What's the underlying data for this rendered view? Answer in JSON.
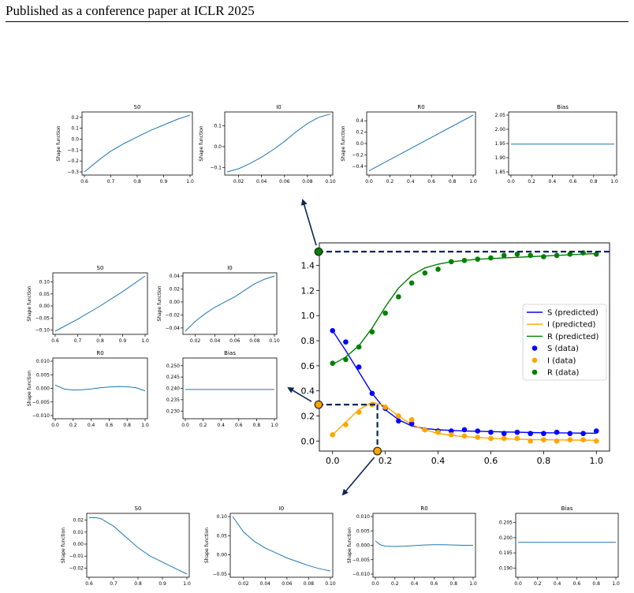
{
  "header": {
    "text": "Published as a conference paper at ICLR 2025"
  },
  "main_chart": {
    "type": "line",
    "x_ticks": [
      "0.0",
      "0.2",
      "0.4",
      "0.6",
      "0.8",
      "1.0"
    ],
    "y_ticks": [
      "0.0",
      "0.2",
      "0.4",
      "0.6",
      "0.8",
      "1.0",
      "1.2",
      "1.4"
    ],
    "xlim": [
      -0.05,
      1.05
    ],
    "ylim": [
      -0.08,
      1.58
    ],
    "legend": [
      {
        "label": "S (predicted)",
        "color": "#0000ff",
        "kind": "line"
      },
      {
        "label": "I (predicted)",
        "color": "#ffa500",
        "kind": "line"
      },
      {
        "label": "R (predicted)",
        "color": "#008000",
        "kind": "line"
      },
      {
        "label": "S (data)",
        "color": "#0000ff",
        "kind": "dot"
      },
      {
        "label": "I (data)",
        "color": "#ffa500",
        "kind": "dot"
      },
      {
        "label": "R (data)",
        "color": "#008000",
        "kind": "dot"
      }
    ],
    "markers": [
      {
        "x": -0.055,
        "y": 1.51,
        "color": "#008000"
      },
      {
        "x": -0.055,
        "y": 0.29,
        "color": "#ffa500"
      },
      {
        "x": 0.17,
        "y": -0.08,
        "color": "#ffa500"
      }
    ]
  },
  "chart_data": [
    {
      "type": "line",
      "x": [
        0.0,
        0.05,
        0.1,
        0.15,
        0.2,
        0.25,
        0.3,
        0.35,
        0.4,
        0.45,
        0.5,
        0.55,
        0.6,
        0.65,
        0.7,
        0.75,
        0.8,
        0.85,
        0.9,
        0.95,
        1.0
      ],
      "series": [
        {
          "name": "S (predicted)",
          "values": [
            0.88,
            0.72,
            0.55,
            0.38,
            0.25,
            0.17,
            0.12,
            0.1,
            0.09,
            0.085,
            0.08,
            0.078,
            0.075,
            0.072,
            0.07,
            0.068,
            0.066,
            0.065,
            0.064,
            0.063,
            0.062
          ]
        },
        {
          "name": "I (predicted)",
          "values": [
            0.05,
            0.15,
            0.25,
            0.31,
            0.28,
            0.2,
            0.13,
            0.09,
            0.06,
            0.045,
            0.035,
            0.028,
            0.022,
            0.018,
            0.015,
            0.012,
            0.01,
            0.009,
            0.008,
            0.007,
            0.006
          ]
        },
        {
          "name": "R (predicted)",
          "values": [
            0.61,
            0.67,
            0.76,
            0.9,
            1.07,
            1.22,
            1.32,
            1.38,
            1.41,
            1.43,
            1.44,
            1.45,
            1.455,
            1.46,
            1.465,
            1.47,
            1.475,
            1.48,
            1.485,
            1.49,
            1.495
          ]
        },
        {
          "name": "S (data)",
          "values": [
            0.88,
            0.79,
            0.59,
            0.38,
            0.26,
            0.16,
            0.14,
            0.09,
            0.08,
            0.08,
            0.09,
            0.08,
            0.07,
            0.06,
            0.07,
            0.06,
            0.06,
            0.07,
            0.06,
            0.06,
            0.08
          ]
        },
        {
          "name": "I (data)",
          "values": [
            0.05,
            0.13,
            0.23,
            0.29,
            0.27,
            0.2,
            0.17,
            0.09,
            0.07,
            0.05,
            0.04,
            0.03,
            0.02,
            0.02,
            0.02,
            0.0,
            0.01,
            0.0,
            0.01,
            0.01,
            0.0
          ]
        },
        {
          "name": "R (data)",
          "values": [
            0.62,
            0.65,
            0.75,
            0.87,
            1.02,
            1.15,
            1.26,
            1.34,
            1.37,
            1.43,
            1.44,
            1.45,
            1.46,
            1.48,
            1.49,
            1.48,
            1.47,
            1.48,
            1.49,
            1.5,
            1.49
          ]
        }
      ]
    },
    {
      "type": "line",
      "title": "S0",
      "ylabel": "Shape function",
      "x_ticks": [
        "0.6",
        "0.7",
        "0.8",
        "0.9",
        "1.0"
      ],
      "y_ticks": [
        "0.2",
        "0.1",
        "0.0",
        "-0.1",
        "-0.2",
        "-0.3"
      ],
      "xlim": [
        0.6,
        1.0
      ],
      "ylim": [
        -0.3,
        0.22
      ],
      "x": [
        0.6,
        0.65,
        0.7,
        0.75,
        0.8,
        0.85,
        0.9,
        0.95,
        1.0
      ],
      "values": [
        -0.3,
        -0.2,
        -0.11,
        -0.04,
        0.02,
        0.08,
        0.13,
        0.18,
        0.22
      ]
    },
    {
      "type": "line",
      "title": "I0",
      "ylabel": "Shape function",
      "x_ticks": [
        "0.02",
        "0.04",
        "0.06",
        "0.08",
        "0.10"
      ],
      "y_ticks": [
        "0.1",
        "0.0",
        "-0.1"
      ],
      "xlim": [
        0.01,
        0.1
      ],
      "ylim": [
        -0.12,
        0.15
      ],
      "x": [
        0.01,
        0.02,
        0.03,
        0.04,
        0.05,
        0.06,
        0.07,
        0.08,
        0.09,
        0.1
      ],
      "values": [
        -0.12,
        -0.105,
        -0.08,
        -0.05,
        -0.015,
        0.025,
        0.07,
        0.11,
        0.14,
        0.155
      ]
    },
    {
      "type": "line",
      "title": "R0",
      "ylabel": "Shape function",
      "x_ticks": [
        "0.0",
        "0.2",
        "0.4",
        "0.6",
        "0.8",
        "1.0"
      ],
      "y_ticks": [
        "0.4",
        "0.2",
        "0.0",
        "-0.2",
        "-0.4"
      ],
      "xlim": [
        0.0,
        1.0
      ],
      "ylim": [
        -0.5,
        0.5
      ],
      "x": [
        0.0,
        1.0
      ],
      "values": [
        -0.48,
        0.5
      ]
    },
    {
      "type": "line",
      "title": "Bias",
      "ylabel": "",
      "x_ticks": [
        "0.0",
        "0.2",
        "0.4",
        "0.6",
        "0.8",
        "1.0"
      ],
      "y_ticks": [
        "2.05",
        "2.00",
        "1.95",
        "1.90",
        "1.85"
      ],
      "xlim": [
        0.0,
        1.0
      ],
      "ylim": [
        1.85,
        2.05
      ],
      "x": [
        0.0,
        1.0
      ],
      "values": [
        1.948,
        1.948
      ]
    },
    {
      "type": "line",
      "title": "S0",
      "ylabel": "Shape function",
      "x_ticks": [
        "0.6",
        "0.7",
        "0.8",
        "0.9",
        "1.0"
      ],
      "y_ticks": [
        "0.10",
        "0.05",
        "0.00",
        "-0.05",
        "-0.10"
      ],
      "xlim": [
        0.6,
        1.0
      ],
      "ylim": [
        -0.105,
        0.125
      ],
      "x": [
        0.6,
        0.7,
        0.8,
        0.9,
        1.0
      ],
      "values": [
        -0.105,
        -0.055,
        0.0,
        0.06,
        0.125
      ]
    },
    {
      "type": "line",
      "title": "I0",
      "ylabel": "Shape function",
      "x_ticks": [
        "0.02",
        "0.04",
        "0.06",
        "0.08",
        "0.10"
      ],
      "y_ticks": [
        "0.04",
        "0.02",
        "0.00",
        "-0.02",
        "-0.04"
      ],
      "xlim": [
        0.01,
        0.1
      ],
      "ylim": [
        -0.045,
        0.04
      ],
      "x": [
        0.01,
        0.02,
        0.03,
        0.04,
        0.05,
        0.06,
        0.07,
        0.08,
        0.09,
        0.1
      ],
      "values": [
        -0.045,
        -0.03,
        -0.018,
        -0.008,
        0.0,
        0.008,
        0.018,
        0.028,
        0.035,
        0.04
      ]
    },
    {
      "type": "line",
      "title": "R0",
      "ylabel": "Shape function",
      "x_ticks": [
        "0.0",
        "0.2",
        "0.4",
        "0.6",
        "0.8",
        "1.0"
      ],
      "y_ticks": [
        "0.010",
        "0.005",
        "0.000",
        "-0.005",
        "-0.010"
      ],
      "xlim": [
        0.0,
        1.0
      ],
      "ylim": [
        -0.01,
        0.01
      ],
      "x": [
        0.0,
        0.1,
        0.2,
        0.3,
        0.4,
        0.5,
        0.6,
        0.7,
        0.8,
        0.9,
        1.0
      ],
      "values": [
        0.0012,
        -0.0002,
        -0.0006,
        -0.0005,
        -0.0002,
        0.0002,
        0.0005,
        0.0007,
        0.0006,
        0.0002,
        -0.0009
      ]
    },
    {
      "type": "line",
      "title": "Bias",
      "ylabel": "",
      "x_ticks": [
        "0.0",
        "0.2",
        "0.4",
        "0.6",
        "0.8",
        "1.0"
      ],
      "y_ticks": [
        "0.250",
        "0.245",
        "0.240",
        "0.235",
        "0.230"
      ],
      "xlim": [
        0.0,
        1.0
      ],
      "ylim": [
        0.228,
        0.252
      ],
      "x": [
        0.0,
        1.0
      ],
      "values": [
        0.2395,
        0.2395
      ]
    },
    {
      "type": "line",
      "title": "S0",
      "ylabel": "Shape function",
      "x_ticks": [
        "0.6",
        "0.7",
        "0.8",
        "0.9",
        "1.0"
      ],
      "y_ticks": [
        "0.02",
        "0.01",
        "0.00",
        "-0.01",
        "-0.02"
      ],
      "xlim": [
        0.6,
        1.0
      ],
      "ylim": [
        -0.025,
        0.023
      ],
      "x": [
        0.6,
        0.63,
        0.65,
        0.7,
        0.75,
        0.8,
        0.85,
        0.9,
        0.95,
        1.0
      ],
      "values": [
        0.022,
        0.022,
        0.021,
        0.015,
        0.006,
        -0.003,
        -0.01,
        -0.015,
        -0.02,
        -0.025
      ]
    },
    {
      "type": "line",
      "title": "I0",
      "ylabel": "Shape function",
      "x_ticks": [
        "0.02",
        "0.04",
        "0.06",
        "0.08",
        "0.10"
      ],
      "y_ticks": [
        "0.10",
        "0.05",
        "0.00",
        "-0.05"
      ],
      "xlim": [
        0.01,
        0.1
      ],
      "ylim": [
        -0.05,
        0.1
      ],
      "x": [
        0.01,
        0.02,
        0.03,
        0.04,
        0.05,
        0.06,
        0.07,
        0.08,
        0.09,
        0.1
      ],
      "values": [
        0.1,
        0.06,
        0.035,
        0.018,
        0.005,
        -0.008,
        -0.018,
        -0.028,
        -0.036,
        -0.042
      ]
    },
    {
      "type": "line",
      "title": "R0",
      "ylabel": "Shape function",
      "x_ticks": [
        "0.0",
        "0.2",
        "0.4",
        "0.6",
        "0.8",
        "1.0"
      ],
      "y_ticks": [
        "0.010",
        "0.005",
        "0.000",
        "-0.005",
        "-0.010"
      ],
      "xlim": [
        0.0,
        1.0
      ],
      "ylim": [
        -0.01,
        0.01
      ],
      "x": [
        0.0,
        0.05,
        0.1,
        0.2,
        0.3,
        0.4,
        0.5,
        0.6,
        0.7,
        0.8,
        0.9,
        1.0
      ],
      "values": [
        0.0015,
        0.0002,
        -0.0003,
        -0.0004,
        -0.0003,
        -0.0001,
        0.0001,
        0.0002,
        0.0002,
        0.0001,
        0.0,
        0.0
      ]
    },
    {
      "type": "line",
      "title": "Bias",
      "ylabel": "",
      "x_ticks": [
        "0.0",
        "0.2",
        "0.4",
        "0.6",
        "0.8",
        "1.0"
      ],
      "y_ticks": [
        "0.205",
        "0.200",
        "0.195",
        "0.190"
      ],
      "xlim": [
        0.0,
        1.0
      ],
      "ylim": [
        0.188,
        0.207
      ],
      "x": [
        0.0,
        1.0
      ],
      "values": [
        0.1985,
        0.1985
      ]
    }
  ]
}
